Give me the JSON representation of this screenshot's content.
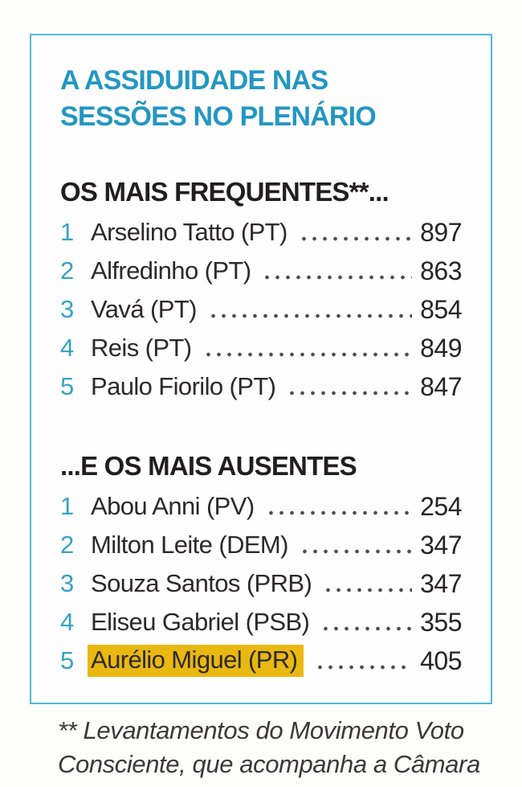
{
  "panel": {
    "title_line1": "A ASSIDUIDADE NAS",
    "title_line2": "SESSÕES NO PLENÁRIO"
  },
  "sections": [
    {
      "heading": "OS MAIS FREQUENTES**...",
      "items": [
        {
          "rank": "1",
          "name": "Arselino Tatto (PT)",
          "value": "897",
          "highlight": false
        },
        {
          "rank": "2",
          "name": "Alfredinho (PT)",
          "value": "863",
          "highlight": false
        },
        {
          "rank": "3",
          "name": "Vavá (PT)",
          "value": "854",
          "highlight": false
        },
        {
          "rank": "4",
          "name": "Reis (PT)",
          "value": "849",
          "highlight": false
        },
        {
          "rank": "5",
          "name": "Paulo Fiorilo (PT)",
          "value": "847",
          "highlight": false
        }
      ]
    },
    {
      "heading": "...E OS MAIS AUSENTES",
      "items": [
        {
          "rank": "1",
          "name": "Abou Anni (PV)",
          "value": "254",
          "highlight": false
        },
        {
          "rank": "2",
          "name": "Milton Leite (DEM)",
          "value": "347",
          "highlight": false
        },
        {
          "rank": "3",
          "name": "Souza Santos (PRB)",
          "value": "347",
          "highlight": false
        },
        {
          "rank": "4",
          "name": "Eliseu Gabriel (PSB)",
          "value": "355",
          "highlight": false
        },
        {
          "rank": "5",
          "name": "Aurélio Miguel (PR)",
          "value": "405",
          "highlight": true
        }
      ]
    }
  ],
  "footnote": {
    "line1": "** Levantamentos do Movimento Voto",
    "line2": "Consciente, que acompanha a Câmara"
  },
  "colors": {
    "accent_cyan": "#2397c2",
    "rank_cyan": "#36a3c5",
    "border_cyan": "#54b8d6",
    "highlight_yellow": "#e9b811",
    "text_dark": "#272425"
  },
  "chart_data": [
    {
      "type": "table",
      "title": "OS MAIS FREQUENTES**...",
      "categories": [
        "Arselino Tatto (PT)",
        "Alfredinho (PT)",
        "Vavá (PT)",
        "Reis (PT)",
        "Paulo Fiorilo (PT)"
      ],
      "values": [
        897,
        863,
        854,
        849,
        847
      ]
    },
    {
      "type": "table",
      "title": "...E OS MAIS AUSENTES",
      "categories": [
        "Abou Anni (PV)",
        "Milton Leite (DEM)",
        "Souza Santos (PRB)",
        "Eliseu Gabriel (PSB)",
        "Aurélio Miguel (PR)"
      ],
      "values": [
        254,
        347,
        347,
        355,
        405
      ],
      "annotations": [
        "Aurélio Miguel (PR) highlighted in yellow"
      ]
    }
  ]
}
